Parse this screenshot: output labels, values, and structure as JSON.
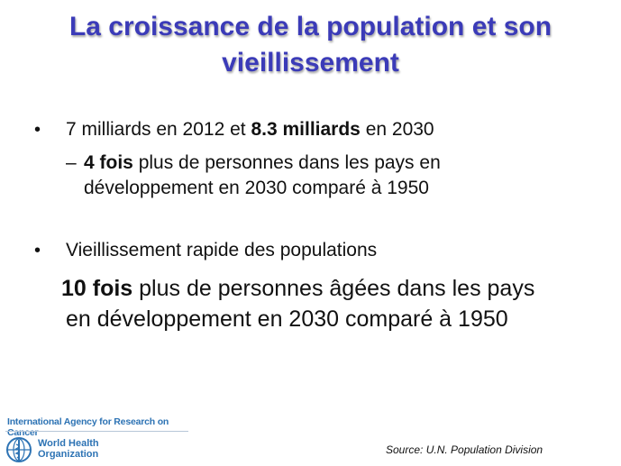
{
  "slide": {
    "title_line1": "La croissance de la population et son",
    "title_line2": "vieillissement",
    "bullet1": {
      "marker": "•",
      "text_a": "7 milliards en 2012 et ",
      "bold": "8.3 milliards",
      "text_b": " en 2030"
    },
    "sub1": {
      "dash": "–",
      "bold": "4 fois",
      "text_line1": " plus de personnes dans les pays en",
      "text_line2": "développement en 2030 comparé à  1950"
    },
    "bullet2": {
      "marker": "•",
      "text": "Vieillissement rapide des populations"
    },
    "emphasis": {
      "bold": "10 fois",
      "text_line1": " plus de personnes âgées dans les pays",
      "text_line2": "en développement en 2030 comparé à  1950"
    }
  },
  "footer": {
    "iarc_name": "International Agency for Research on Cancer",
    "who_line1": "World Health",
    "who_line2": "Organization",
    "who_emblem_icon": "who-emblem-icon",
    "source": "Source: U.N. Population Division"
  },
  "colors": {
    "title": "#3b3bb8",
    "logo_blue": "#2d73b4"
  }
}
